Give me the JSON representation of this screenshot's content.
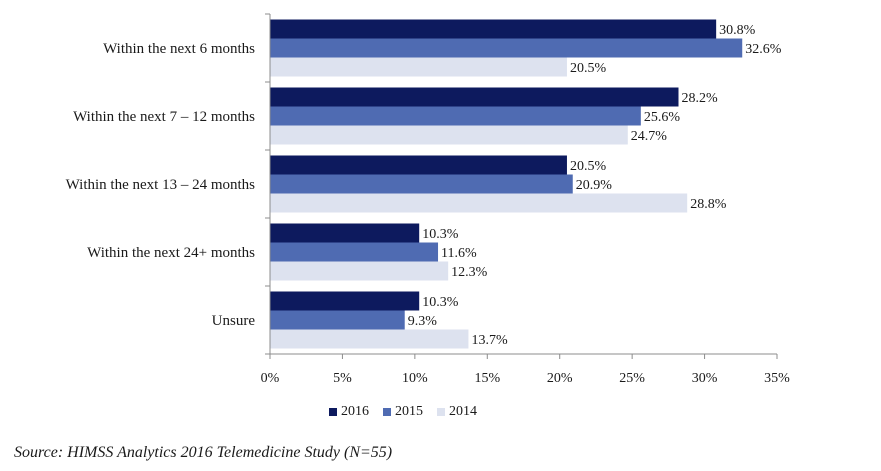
{
  "chart_data": {
    "type": "bar",
    "orientation": "horizontal",
    "categories": [
      "Within the next 6 months",
      "Within the next 7 – 12 months",
      "Within the next 13 – 24 months",
      "Within the next 24+ months",
      "Unsure"
    ],
    "series": [
      {
        "name": "2016",
        "color": "#0d1a5e",
        "values": [
          30.8,
          28.2,
          20.5,
          10.3,
          10.3
        ],
        "labels": [
          "30.8%",
          "28.2%",
          "20.5%",
          "10.3%",
          "10.3%"
        ]
      },
      {
        "name": "2015",
        "color": "#4f6bb2",
        "values": [
          32.6,
          25.6,
          20.9,
          11.6,
          9.3
        ],
        "labels": [
          "32.6%",
          "25.6%",
          "20.9%",
          "11.6%",
          "9.3%"
        ]
      },
      {
        "name": "2014",
        "color": "#dde2ef",
        "values": [
          20.5,
          24.7,
          28.8,
          12.3,
          13.7
        ],
        "labels": [
          "20.5%",
          "24.7%",
          "28.8%",
          "12.3%",
          "13.7%"
        ]
      }
    ],
    "xlim": [
      0,
      35
    ],
    "xticks": [
      "0%",
      "5%",
      "10%",
      "15%",
      "20%",
      "25%",
      "30%",
      "35%"
    ],
    "grid": false,
    "legend_position": "bottom"
  },
  "legend": {
    "items": [
      {
        "label": "2016",
        "color": "#0d1a5e"
      },
      {
        "label": "2015",
        "color": "#4f6bb2"
      },
      {
        "label": "2014",
        "color": "#dde2ef"
      }
    ]
  },
  "source": "Source: HIMSS Analytics 2016 Telemedicine Study (N=55)"
}
